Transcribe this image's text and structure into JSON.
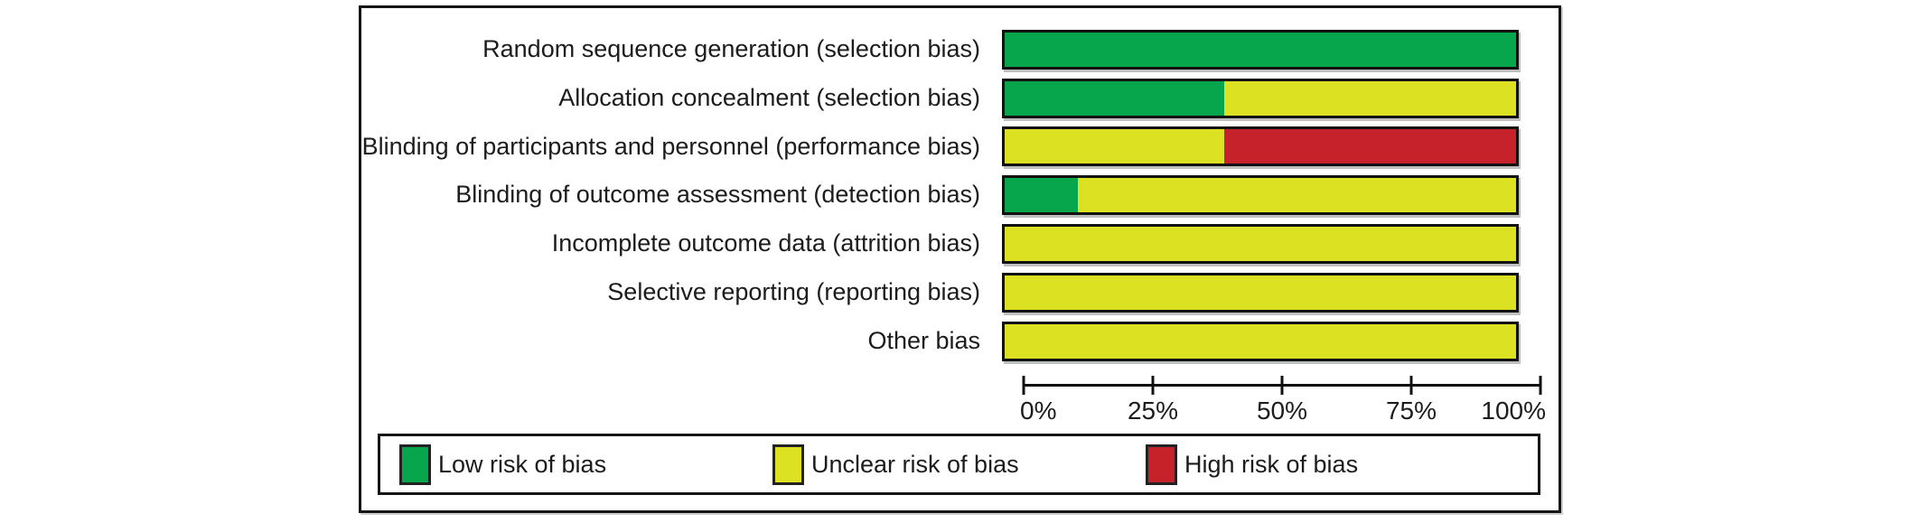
{
  "chart_data": {
    "type": "bar",
    "orientation": "horizontal_stacked",
    "title": "",
    "xlabel": "",
    "ylabel": "",
    "xlim": [
      0,
      100
    ],
    "grid": false,
    "legend_position": "bottom",
    "categories": [
      "Random sequence generation (selection bias)",
      "Allocation concealment (selection bias)",
      "Blinding of participants and personnel (performance bias)",
      "Blinding of outcome assessment (detection bias)",
      "Incomplete outcome data (attrition bias)",
      "Selective reporting (reporting bias)",
      "Other bias"
    ],
    "series": [
      {
        "key": "low",
        "name": "Low risk of bias",
        "color": "#07a64c",
        "values": [
          100,
          42.9,
          0,
          14.3,
          0,
          0,
          0
        ]
      },
      {
        "key": "unclear",
        "name": "Unclear risk of bias",
        "color": "#dce122",
        "values": [
          0,
          57.1,
          42.9,
          85.7,
          100,
          100,
          100
        ]
      },
      {
        "key": "high",
        "name": "High risk of bias",
        "color": "#c5222b",
        "values": [
          0,
          0,
          57.1,
          0,
          0,
          0,
          0
        ]
      }
    ],
    "x_ticks": [
      "0%",
      "25%",
      "50%",
      "75%",
      "100%"
    ]
  }
}
